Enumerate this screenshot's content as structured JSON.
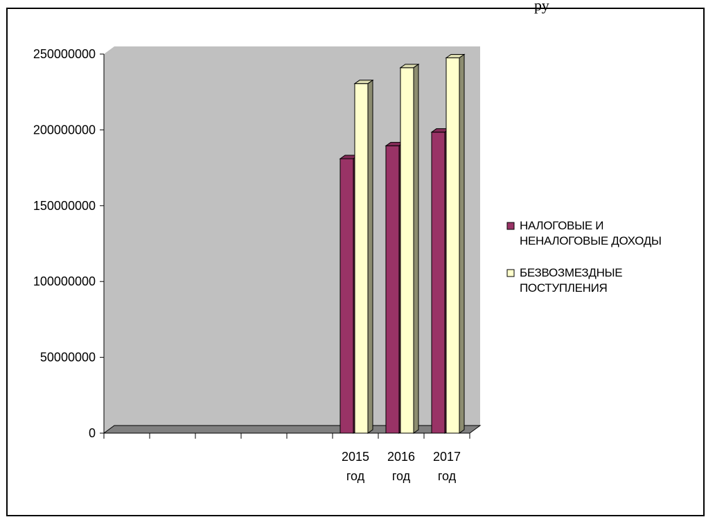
{
  "header_fragment": "ру",
  "chart_data": {
    "type": "bar",
    "title": "",
    "xlabel": "",
    "ylabel": "",
    "ylim": [
      0,
      250000000
    ],
    "y_ticks": [
      "0",
      "50000000",
      "100000000",
      "150000000",
      "200000000",
      "250000000"
    ],
    "categories": [
      {
        "line1": "",
        "line2": ""
      },
      {
        "line1": "",
        "line2": ""
      },
      {
        "line1": "",
        "line2": ""
      },
      {
        "line1": "",
        "line2": ""
      },
      {
        "line1": "",
        "line2": ""
      },
      {
        "line1": "2015",
        "line2": "год"
      },
      {
        "line1": "2016",
        "line2": "год"
      },
      {
        "line1": "2017",
        "line2": "год"
      }
    ],
    "series": [
      {
        "name_lines": [
          "НАЛОГОВЫЕ И",
          "НЕНАЛОГОВЫЕ ДОХОДЫ"
        ],
        "color": "#993366",
        "values": [
          null,
          null,
          null,
          null,
          null,
          181000000,
          189500000,
          198500000
        ]
      },
      {
        "name_lines": [
          "БЕЗВОЗМЕЗДНЫЕ",
          "ПОСТУПЛЕНИЯ"
        ],
        "color": "#FFFFCC",
        "values": [
          null,
          null,
          null,
          null,
          null,
          230500000,
          241000000,
          247500000
        ]
      }
    ],
    "legend_position": "right",
    "wall_color": "#C0C0C0",
    "floor_color": "#808080",
    "grid": false
  }
}
